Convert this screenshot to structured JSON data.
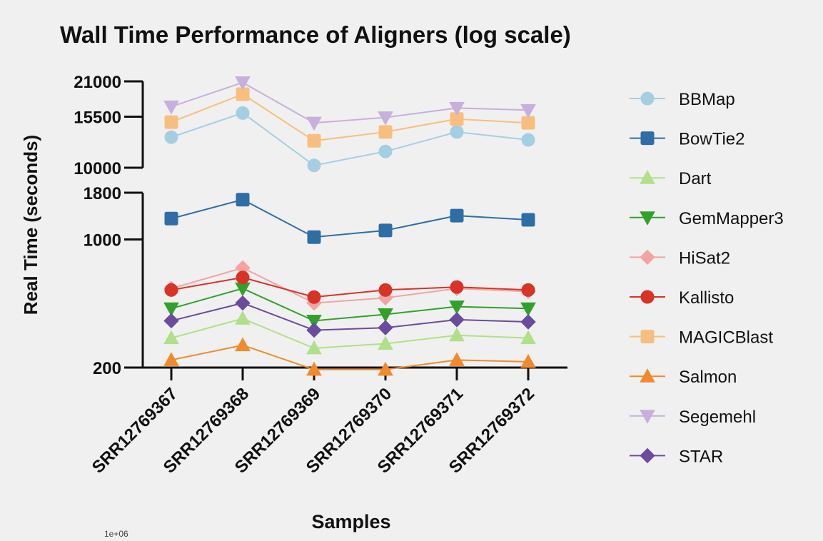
{
  "chart_data": {
    "type": "line",
    "title": "Wall Time Performance of Aligners (log scale)",
    "xlabel": "Samples",
    "ylabel": "Real Time (seconds)",
    "categories": [
      "SRR12769367",
      "SRR12769368",
      "SRR12769369",
      "SRR12769370",
      "SRR12769371",
      "SRR12769372"
    ],
    "y_scale": "log (broken axis)",
    "y_segments": [
      {
        "ylim": [
          200,
          1800
        ],
        "ticks": [
          "1800",
          "1000",
          "200"
        ]
      },
      {
        "ylim": [
          10000,
          21000
        ],
        "ticks": [
          "21000",
          "15500",
          "10000"
        ]
      }
    ],
    "grid": false,
    "legend_position": "right",
    "series": [
      {
        "name": "BBMap",
        "marker": "circle",
        "color": "#a6cee3",
        "values": [
          13000,
          16000,
          10200,
          11500,
          13600,
          12700
        ]
      },
      {
        "name": "BowTie2",
        "marker": "square",
        "color": "#2f6ea5",
        "values": [
          1300,
          1650,
          1030,
          1120,
          1350,
          1280
        ]
      },
      {
        "name": "Dart",
        "marker": "triangle-up",
        "color": "#b2df8a",
        "values": [
          290,
          370,
          255,
          270,
          300,
          290
        ]
      },
      {
        "name": "GemMapper3",
        "marker": "triangle-down",
        "color": "#33a02c",
        "values": [
          420,
          540,
          360,
          390,
          430,
          420
        ]
      },
      {
        "name": "HiSat2",
        "marker": "diamond",
        "color": "#f4a3a3",
        "values": [
          540,
          700,
          450,
          480,
          540,
          520
        ]
      },
      {
        "name": "Kallisto",
        "marker": "circle",
        "color": "#d93328",
        "values": [
          530,
          620,
          485,
          530,
          550,
          530
        ]
      },
      {
        "name": "MAGICBlast",
        "marker": "square",
        "color": "#f7bf7f",
        "values": [
          14800,
          18800,
          12600,
          13600,
          15200,
          14700
        ]
      },
      {
        "name": "Salmon",
        "marker": "triangle-up",
        "color": "#f08a2c",
        "values": [
          220,
          265,
          195,
          195,
          220,
          215
        ]
      },
      {
        "name": "Segemehl",
        "marker": "triangle-down",
        "color": "#c7b0dc",
        "values": [
          16900,
          20800,
          14700,
          15400,
          16700,
          16400
        ]
      },
      {
        "name": "STAR",
        "marker": "diamond",
        "color": "#6a4c9c",
        "values": [
          360,
          450,
          320,
          330,
          365,
          355
        ]
      }
    ]
  },
  "partial_label": "1e+06"
}
